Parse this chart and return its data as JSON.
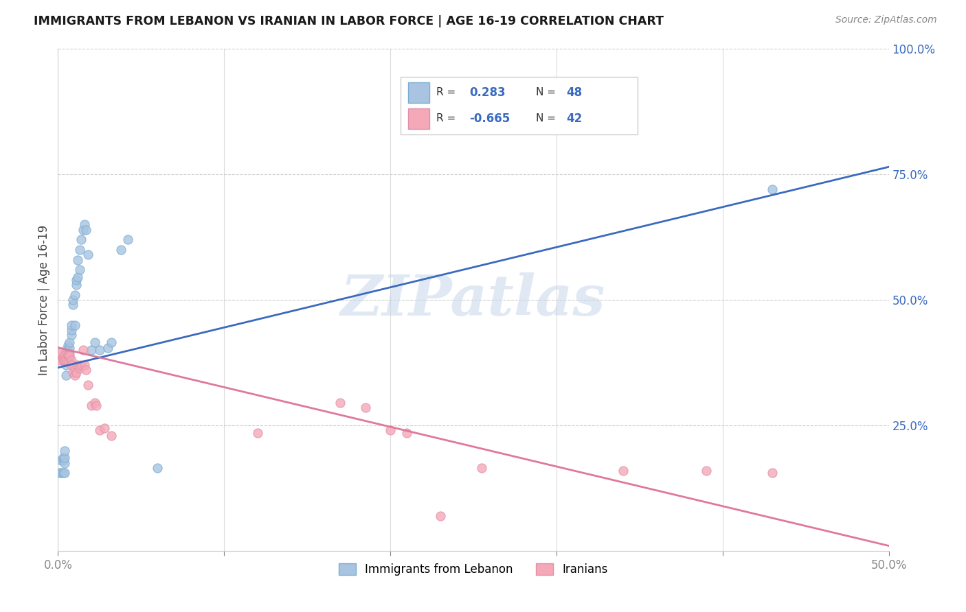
{
  "title": "IMMIGRANTS FROM LEBANON VS IRANIAN IN LABOR FORCE | AGE 16-19 CORRELATION CHART",
  "source": "Source: ZipAtlas.com",
  "ylabel": "In Labor Force | Age 16-19",
  "xlim": [
    0.0,
    0.5
  ],
  "ylim": [
    0.0,
    1.0
  ],
  "y_ticks": [
    0.0,
    0.25,
    0.5,
    0.75,
    1.0
  ],
  "y_tick_labels": [
    "",
    "25.0%",
    "50.0%",
    "75.0%",
    "100.0%"
  ],
  "lebanon_color": "#a8c4e0",
  "iranian_color": "#f4a8b8",
  "lebanon_R": 0.283,
  "lebanon_N": 48,
  "iranian_R": -0.665,
  "iranian_N": 42,
  "lebanon_line_color": "#3a6abf",
  "iranian_line_color": "#e07898",
  "watermark": "ZIPatlas",
  "lebanon_line_x0": 0.0,
  "lebanon_line_y0": 0.365,
  "lebanon_line_x1": 0.5,
  "lebanon_line_y1": 0.765,
  "iranian_line_x0": 0.0,
  "iranian_line_y0": 0.405,
  "iranian_line_x1": 0.5,
  "iranian_line_y1": 0.01,
  "lebanon_pts_x": [
    0.001,
    0.002,
    0.002,
    0.003,
    0.003,
    0.003,
    0.004,
    0.004,
    0.004,
    0.004,
    0.005,
    0.005,
    0.005,
    0.005,
    0.005,
    0.006,
    0.006,
    0.006,
    0.007,
    0.007,
    0.007,
    0.008,
    0.008,
    0.008,
    0.009,
    0.009,
    0.01,
    0.01,
    0.011,
    0.011,
    0.012,
    0.012,
    0.013,
    0.013,
    0.014,
    0.015,
    0.016,
    0.017,
    0.018,
    0.02,
    0.022,
    0.025,
    0.03,
    0.032,
    0.038,
    0.042,
    0.06,
    0.43
  ],
  "lebanon_pts_y": [
    0.155,
    0.155,
    0.18,
    0.155,
    0.18,
    0.185,
    0.155,
    0.175,
    0.185,
    0.2,
    0.35,
    0.37,
    0.385,
    0.395,
    0.4,
    0.39,
    0.395,
    0.41,
    0.395,
    0.405,
    0.415,
    0.43,
    0.44,
    0.45,
    0.49,
    0.5,
    0.45,
    0.51,
    0.53,
    0.54,
    0.545,
    0.58,
    0.56,
    0.6,
    0.62,
    0.64,
    0.65,
    0.64,
    0.59,
    0.4,
    0.415,
    0.4,
    0.405,
    0.415,
    0.6,
    0.62,
    0.165,
    0.72
  ],
  "iranian_pts_x": [
    0.001,
    0.002,
    0.002,
    0.003,
    0.003,
    0.004,
    0.004,
    0.005,
    0.005,
    0.006,
    0.006,
    0.007,
    0.007,
    0.008,
    0.008,
    0.009,
    0.01,
    0.01,
    0.011,
    0.012,
    0.013,
    0.014,
    0.015,
    0.016,
    0.017,
    0.018,
    0.02,
    0.022,
    0.023,
    0.025,
    0.028,
    0.032,
    0.12,
    0.17,
    0.185,
    0.2,
    0.21,
    0.23,
    0.255,
    0.34,
    0.39,
    0.43
  ],
  "iranian_pts_y": [
    0.38,
    0.39,
    0.395,
    0.38,
    0.385,
    0.39,
    0.38,
    0.385,
    0.38,
    0.39,
    0.38,
    0.385,
    0.39,
    0.38,
    0.37,
    0.355,
    0.36,
    0.35,
    0.355,
    0.37,
    0.365,
    0.37,
    0.4,
    0.37,
    0.36,
    0.33,
    0.29,
    0.295,
    0.29,
    0.24,
    0.245,
    0.23,
    0.235,
    0.295,
    0.285,
    0.24,
    0.235,
    0.07,
    0.165,
    0.16,
    0.16,
    0.155
  ]
}
